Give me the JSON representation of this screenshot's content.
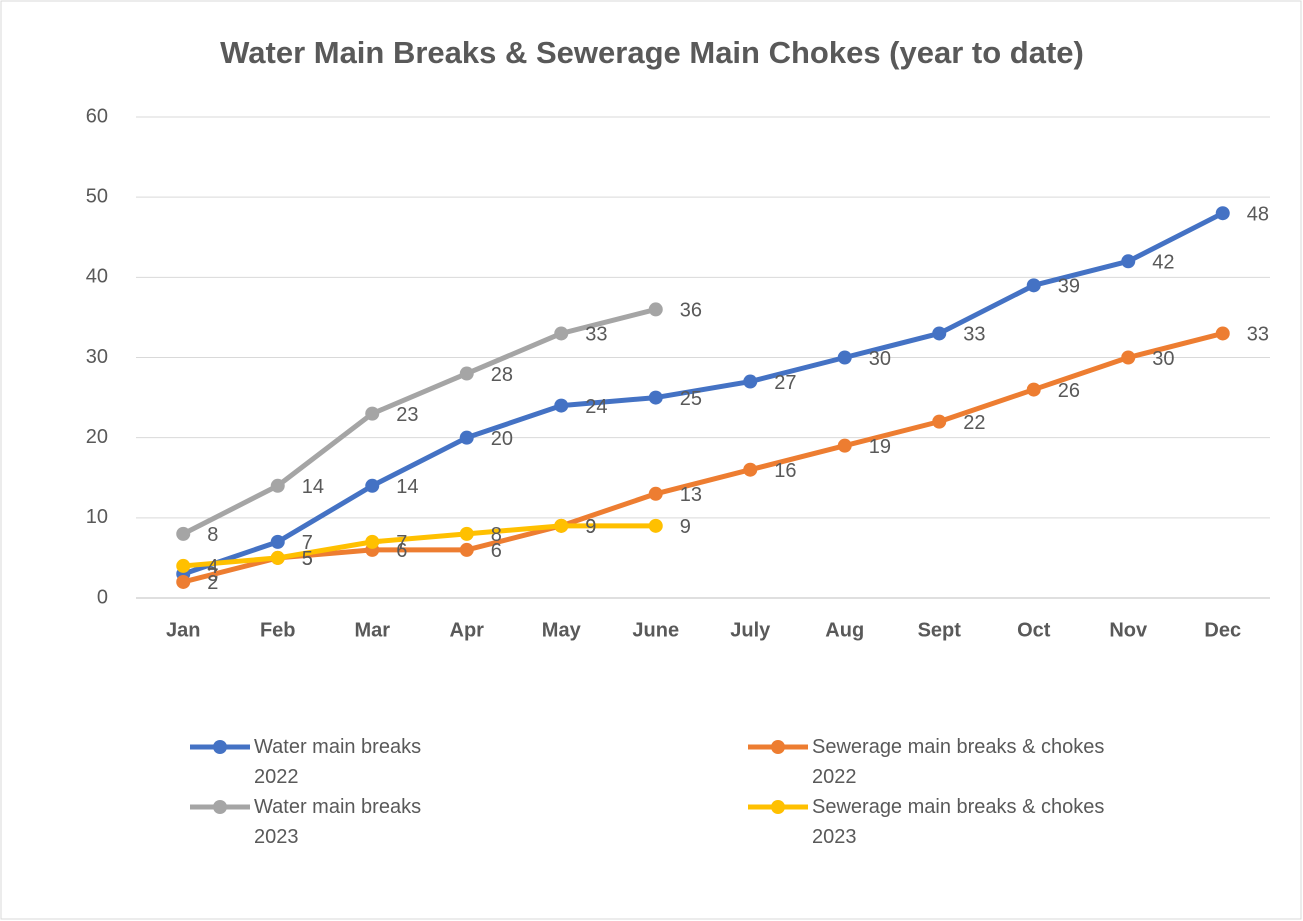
{
  "chart_data": {
    "type": "line",
    "title": "Water Main Breaks & Sewerage Main Chokes (year to date)",
    "categories": [
      "Jan",
      "Feb",
      "Mar",
      "Apr",
      "May",
      "June",
      "July",
      "Aug",
      "Sept",
      "Oct",
      "Nov",
      "Dec"
    ],
    "ylim": [
      0,
      60
    ],
    "yticks": [
      0,
      10,
      20,
      30,
      40,
      50,
      60
    ],
    "grid": true,
    "legend": "bottom",
    "series": [
      {
        "name": "Water main breaks 2022",
        "color": "#4472c4",
        "values": [
          3,
          7,
          14,
          20,
          24,
          25,
          27,
          30,
          33,
          39,
          42,
          48
        ]
      },
      {
        "name": "Sewerage main breaks & chokes 2022",
        "color": "#ed7d31",
        "values": [
          2,
          5,
          6,
          6,
          9,
          13,
          16,
          19,
          22,
          26,
          30,
          33
        ]
      },
      {
        "name": "Water main breaks 2023",
        "color": "#a5a5a5",
        "values": [
          8,
          14,
          23,
          28,
          33,
          36,
          null,
          null,
          null,
          null,
          null,
          null
        ]
      },
      {
        "name": "Sewerage main breaks & chokes 2023",
        "color": "#ffc000",
        "values": [
          4,
          5,
          7,
          8,
          9,
          9,
          null,
          null,
          null,
          null,
          null,
          null
        ]
      }
    ]
  }
}
